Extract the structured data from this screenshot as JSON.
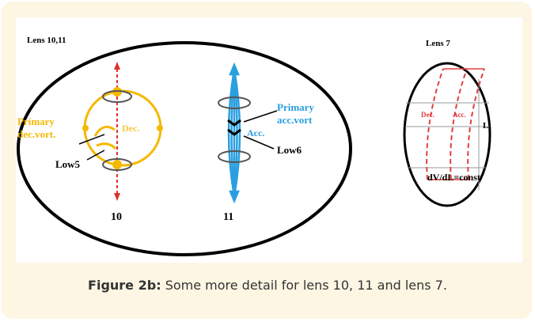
{
  "figure": {
    "left_title": "Lens 10,11",
    "right_title": "Lens 7",
    "primary_dec": [
      "Primary",
      "dec.vort."
    ],
    "dec": "Dec.",
    "low5": "Low5",
    "primary_acc": [
      "Primary",
      "acc.vort"
    ],
    "acc": "Acc.",
    "low6": "Low6",
    "num10": "10",
    "num11": "11",
    "lens7_dec": "Dec.",
    "lens7_acc": "Acc.",
    "lens7_L": "L",
    "lens7_formula": "dV/dL=const"
  },
  "caption": {
    "label": "Figure 2b:",
    "text": "Some more detail for lens 10, 11 and lens 7."
  }
}
